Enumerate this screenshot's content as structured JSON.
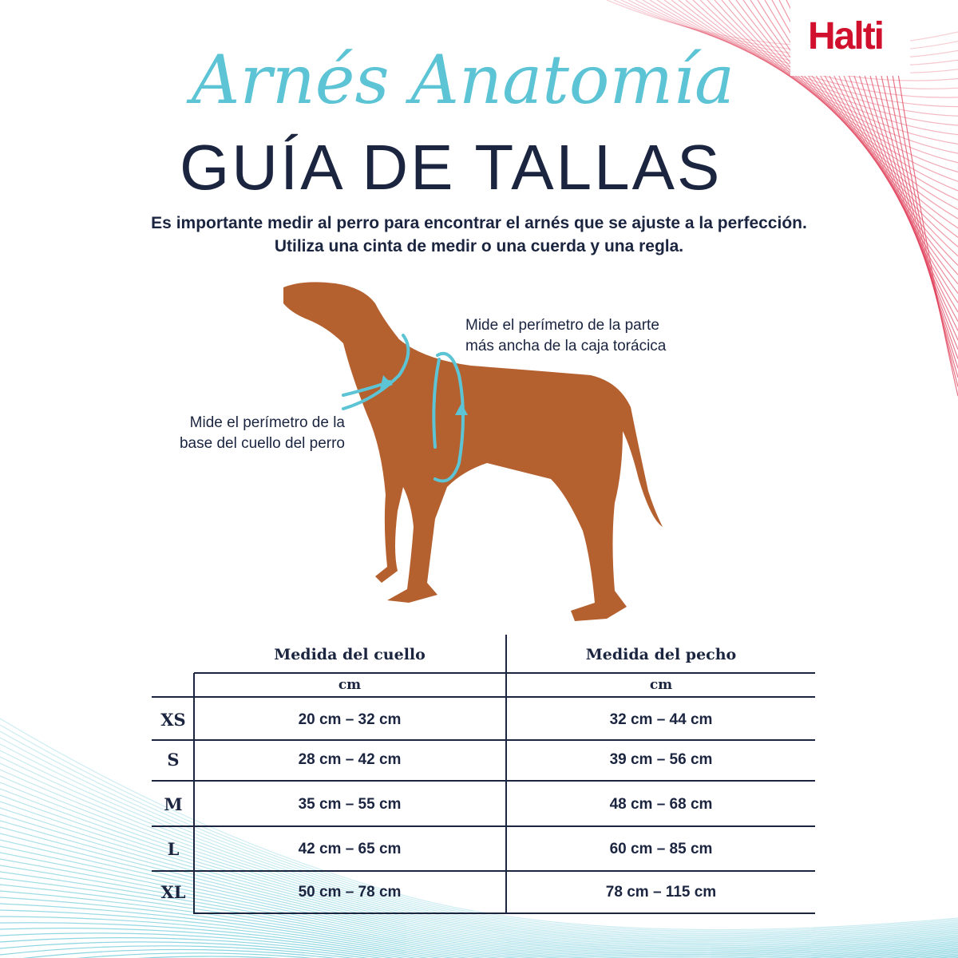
{
  "brand": {
    "logo": "Halti",
    "color": "#d0102c"
  },
  "header": {
    "script_title": "Arnés Anatomía",
    "title": "GUÍA DE TALLAS"
  },
  "intro": {
    "line1": "Es importante medir al perro para encontrar el arnés que se ajuste a la perfección.",
    "line2": "Utiliza una cinta de medir o una cuerda y una regla."
  },
  "annotations": {
    "chest_line1": "Mide el perímetro de la parte",
    "chest_line2": "más ancha de la caja torácica",
    "neck_line1": "Mide el perímetro de la",
    "neck_line2": "base del cuello del perro"
  },
  "colors": {
    "accent": "#5cc4d4",
    "navy": "#1b2540",
    "dog": "#b5602f"
  },
  "table": {
    "columns": [
      {
        "label": "Medida del cuello",
        "unit": "cm"
      },
      {
        "label": "Medida del pecho",
        "unit": "cm"
      }
    ],
    "rows": [
      {
        "size": "XS",
        "neck": "20 cm – 32 cm",
        "chest": "32 cm – 44 cm"
      },
      {
        "size": "S",
        "neck": "28 cm – 42 cm",
        "chest": "39 cm – 56 cm"
      },
      {
        "size": "M",
        "neck": "35 cm – 55 cm",
        "chest": "48 cm – 68 cm"
      },
      {
        "size": "L",
        "neck": "42 cm – 65 cm",
        "chest": "60 cm – 85 cm"
      },
      {
        "size": "XL",
        "neck": "50 cm – 78 cm",
        "chest": "78 cm – 115 cm"
      }
    ]
  }
}
